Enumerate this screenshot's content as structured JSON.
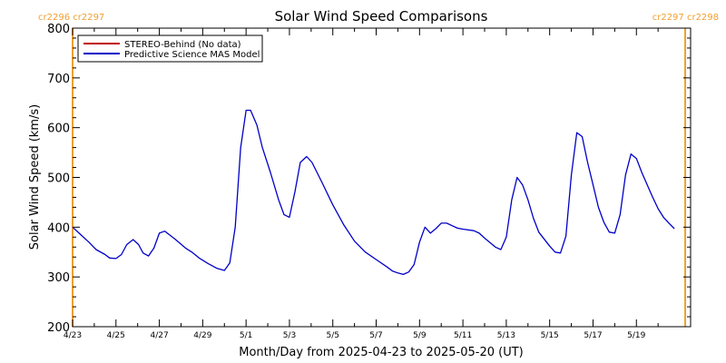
{
  "chart_data": {
    "type": "line",
    "title": "Solar Wind Speed Comparisons",
    "xlabel": "Month/Day from 2025-04-23 to 2025-05-20 (UT)",
    "ylabel": "Solar Wind Speed (km/s)",
    "xlim": [
      "2025-04-23",
      "2025-05-21T12:00"
    ],
    "ylim": [
      200,
      800
    ],
    "y_ticks": [
      200,
      300,
      400,
      500,
      600,
      700,
      800
    ],
    "x_ticks": [
      {
        "date": "2025-04-23",
        "label": "4/23"
      },
      {
        "date": "2025-04-25",
        "label": "4/25"
      },
      {
        "date": "2025-04-27",
        "label": "4/27"
      },
      {
        "date": "2025-04-29",
        "label": "4/29"
      },
      {
        "date": "2025-05-01",
        "label": "5/1"
      },
      {
        "date": "2025-05-03",
        "label": "5/3"
      },
      {
        "date": "2025-05-05",
        "label": "5/5"
      },
      {
        "date": "2025-05-07",
        "label": "5/7"
      },
      {
        "date": "2025-05-09",
        "label": "5/9"
      },
      {
        "date": "2025-05-11",
        "label": "5/11"
      },
      {
        "date": "2025-05-13",
        "label": "5/13"
      },
      {
        "date": "2025-05-15",
        "label": "5/15"
      },
      {
        "date": "2025-05-17",
        "label": "5/17"
      },
      {
        "date": "2025-05-19",
        "label": "5/19"
      }
    ],
    "grid": false,
    "legend_position": "top-left",
    "series": [
      {
        "name": "STEREO-Behind (No data)",
        "color": "#c00000",
        "points": []
      },
      {
        "name": "Predictive Science MAS Model",
        "color": "#0000c8",
        "points": [
          [
            "2025-04-23T00:00",
            400
          ],
          [
            "2025-04-23T09:00",
            385
          ],
          [
            "2025-04-23T18:00",
            370
          ],
          [
            "2025-04-24T02:00",
            355
          ],
          [
            "2025-04-24T12:00",
            345
          ],
          [
            "2025-04-24T17:00",
            338
          ],
          [
            "2025-04-25T00:00",
            337
          ],
          [
            "2025-04-25T06:00",
            345
          ],
          [
            "2025-04-25T12:00",
            365
          ],
          [
            "2025-04-25T19:00",
            375
          ],
          [
            "2025-04-26T01:00",
            365
          ],
          [
            "2025-04-26T06:00",
            348
          ],
          [
            "2025-04-26T12:00",
            342
          ],
          [
            "2025-04-26T18:00",
            358
          ],
          [
            "2025-04-27T00:00",
            388
          ],
          [
            "2025-04-27T06:00",
            392
          ],
          [
            "2025-04-27T18:00",
            375
          ],
          [
            "2025-04-28T05:00",
            358
          ],
          [
            "2025-04-28T12:00",
            350
          ],
          [
            "2025-04-28T20:00",
            338
          ],
          [
            "2025-04-29T06:00",
            327
          ],
          [
            "2025-04-29T16:00",
            317
          ],
          [
            "2025-04-30T00:00",
            313
          ],
          [
            "2025-04-30T06:00",
            328
          ],
          [
            "2025-04-30T12:00",
            400
          ],
          [
            "2025-04-30T18:00",
            560
          ],
          [
            "2025-05-01T00:00",
            635
          ],
          [
            "2025-05-01T05:00",
            635
          ],
          [
            "2025-05-01T12:00",
            605
          ],
          [
            "2025-05-01T18:00",
            560
          ],
          [
            "2025-05-02T03:00",
            510
          ],
          [
            "2025-05-02T12:00",
            455
          ],
          [
            "2025-05-02T18:00",
            425
          ],
          [
            "2025-05-03T00:00",
            420
          ],
          [
            "2025-05-03T06:00",
            470
          ],
          [
            "2025-05-03T12:00",
            530
          ],
          [
            "2025-05-03T19:00",
            542
          ],
          [
            "2025-05-04T01:00",
            530
          ],
          [
            "2025-05-04T12:00",
            490
          ],
          [
            "2025-05-05T00:00",
            445
          ],
          [
            "2025-05-05T12:00",
            405
          ],
          [
            "2025-05-06T00:00",
            372
          ],
          [
            "2025-05-06T12:00",
            350
          ],
          [
            "2025-05-07T00:00",
            335
          ],
          [
            "2025-05-07T12:00",
            320
          ],
          [
            "2025-05-07T18:00",
            312
          ],
          [
            "2025-05-08T00:00",
            308
          ],
          [
            "2025-05-08T06:00",
            305
          ],
          [
            "2025-05-08T12:00",
            310
          ],
          [
            "2025-05-08T18:00",
            325
          ],
          [
            "2025-05-09T00:00",
            370
          ],
          [
            "2025-05-09T06:00",
            400
          ],
          [
            "2025-05-09T12:00",
            388
          ],
          [
            "2025-05-09T18:00",
            397
          ],
          [
            "2025-05-10T00:00",
            408
          ],
          [
            "2025-05-10T06:00",
            408
          ],
          [
            "2025-05-10T12:00",
            403
          ],
          [
            "2025-05-10T18:00",
            398
          ],
          [
            "2025-05-11T00:00",
            396
          ],
          [
            "2025-05-11T12:00",
            393
          ],
          [
            "2025-05-11T18:00",
            388
          ],
          [
            "2025-05-12T00:00",
            378
          ],
          [
            "2025-05-12T12:00",
            360
          ],
          [
            "2025-05-12T18:00",
            355
          ],
          [
            "2025-05-13T00:00",
            380
          ],
          [
            "2025-05-13T06:00",
            455
          ],
          [
            "2025-05-13T12:00",
            500
          ],
          [
            "2025-05-13T18:00",
            485
          ],
          [
            "2025-05-14T00:00",
            455
          ],
          [
            "2025-05-14T06:00",
            418
          ],
          [
            "2025-05-14T12:00",
            390
          ],
          [
            "2025-05-15T00:00",
            362
          ],
          [
            "2025-05-15T06:00",
            350
          ],
          [
            "2025-05-15T12:00",
            348
          ],
          [
            "2025-05-15T18:00",
            382
          ],
          [
            "2025-05-16T00:00",
            505
          ],
          [
            "2025-05-16T06:00",
            590
          ],
          [
            "2025-05-16T12:00",
            582
          ],
          [
            "2025-05-16T18:00",
            530
          ],
          [
            "2025-05-17T00:00",
            485
          ],
          [
            "2025-05-17T06:00",
            440
          ],
          [
            "2025-05-17T12:00",
            410
          ],
          [
            "2025-05-17T18:00",
            390
          ],
          [
            "2025-05-18T00:00",
            388
          ],
          [
            "2025-05-18T06:00",
            425
          ],
          [
            "2025-05-18T12:00",
            505
          ],
          [
            "2025-05-18T18:00",
            547
          ],
          [
            "2025-05-19T00:00",
            538
          ],
          [
            "2025-05-19T06:00",
            510
          ],
          [
            "2025-05-19T12:00",
            485
          ],
          [
            "2025-05-19T18:00",
            460
          ],
          [
            "2025-05-20T00:00",
            437
          ],
          [
            "2025-05-20T06:00",
            420
          ],
          [
            "2025-05-20T12:00",
            408
          ],
          [
            "2025-05-20T18:00",
            397
          ]
        ]
      }
    ],
    "markers": [
      {
        "date": "2025-04-23",
        "color": "#f0a030",
        "label": "cr2296 cr2297",
        "align": "left"
      },
      {
        "date": "2025-05-21T06:00",
        "color": "#f0a030",
        "label": "cr2297 cr2298",
        "align": "right"
      }
    ]
  }
}
